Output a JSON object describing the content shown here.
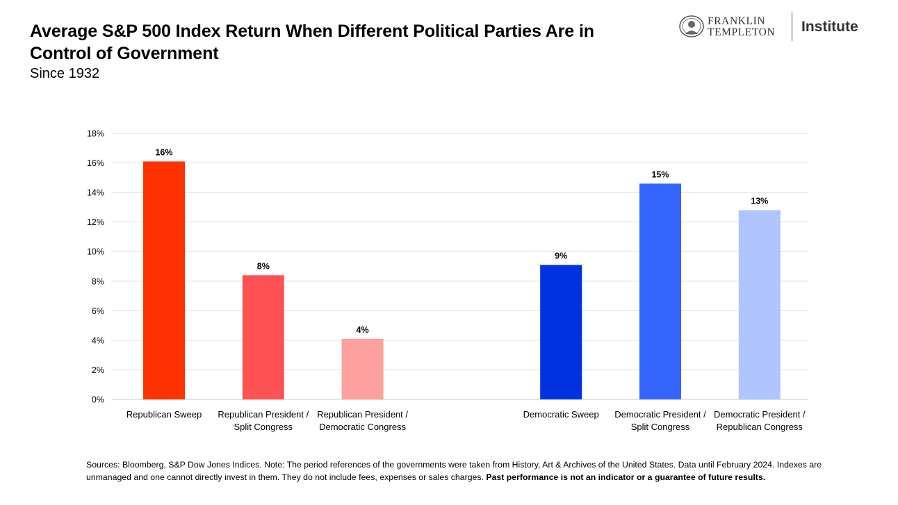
{
  "header": {
    "title": "Average S&P 500 Index Return When Different Political Parties Are in Control of Government",
    "subtitle": "Since 1932",
    "logo_line1": "FRANKLIN",
    "logo_line2": "TEMPLETON",
    "logo_institute": "Institute"
  },
  "footer": {
    "note": "Sources: Bloomberg, S&P Dow Jones Indices. Note: The period references of the governments were taken from History, Art & Archives of the United States. Data until February 2024. Indexes are unmanaged and one cannot directly invest in them. They do not include fees, expenses or sales charges.",
    "disclaimer": "Past performance is not an indicator or a guarantee of future results."
  },
  "chart_data": {
    "type": "bar",
    "title": "Average S&P 500 Index Return When Different Political Parties Are in Control of Government",
    "subtitle": "Since 1932",
    "categories": [
      [
        "Republican Sweep"
      ],
      [
        "Republican President /",
        "Split Congress"
      ],
      [
        "Republican President /",
        "Democratic Congress"
      ],
      [
        "Democratic Sweep"
      ],
      [
        "Democratic President /",
        "Split Congress"
      ],
      [
        "Democratic President /",
        "Republican Congress"
      ]
    ],
    "values": [
      16.1,
      8.4,
      4.1,
      9.1,
      14.6,
      12.8
    ],
    "data_labels": [
      "16%",
      "8%",
      "4%",
      "9%",
      "15%",
      "13%"
    ],
    "colors": [
      "#FF3300",
      "#FF5252",
      "#FFA0A0",
      "#0033E0",
      "#3366FF",
      "#B0C4FF"
    ],
    "slot_index": [
      0,
      1,
      2,
      4,
      5,
      6
    ],
    "ylim": [
      0,
      18
    ],
    "yticks": [
      0,
      2,
      4,
      6,
      8,
      10,
      12,
      14,
      16,
      18
    ],
    "ytick_labels": [
      "0%",
      "2%",
      "4%",
      "6%",
      "8%",
      "10%",
      "12%",
      "14%",
      "16%",
      "18%"
    ],
    "grid": true,
    "legend": "none",
    "xlabel": "",
    "ylabel": ""
  }
}
